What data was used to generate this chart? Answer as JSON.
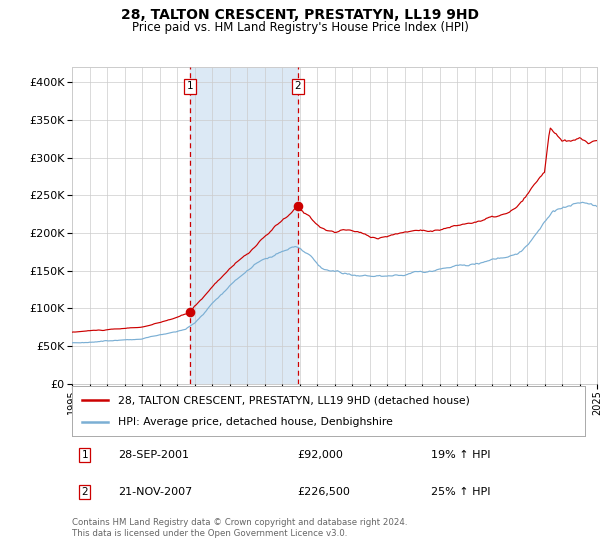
{
  "title1": "28, TALTON CRESCENT, PRESTATYN, LL19 9HD",
  "title2": "Price paid vs. HM Land Registry's House Price Index (HPI)",
  "legend_line1": "28, TALTON CRESCENT, PRESTATYN, LL19 9HD (detached house)",
  "legend_line2": "HPI: Average price, detached house, Denbighshire",
  "transaction1_date": "28-SEP-2001",
  "transaction1_price": "£92,000",
  "transaction1_hpi": "19% ↑ HPI",
  "transaction2_date": "21-NOV-2007",
  "transaction2_price": "£226,500",
  "transaction2_hpi": "25% ↑ HPI",
  "footnote1": "Contains HM Land Registry data © Crown copyright and database right 2024.",
  "footnote2": "This data is licensed under the Open Government Licence v3.0.",
  "red_line_color": "#cc0000",
  "blue_line_color": "#7bafd4",
  "highlight_color": "#dce9f5",
  "vline_color": "#cc0000",
  "dot_color": "#cc0000",
  "grid_color": "#cccccc",
  "background_color": "#ffffff",
  "ylim": [
    0,
    420000
  ],
  "yticks": [
    0,
    50000,
    100000,
    150000,
    200000,
    250000,
    300000,
    350000,
    400000
  ],
  "start_year": 1995,
  "end_year": 2025,
  "transaction1_year": 2001.75,
  "transaction2_year": 2007.9,
  "transaction1_value": 92000,
  "transaction2_value": 226500
}
